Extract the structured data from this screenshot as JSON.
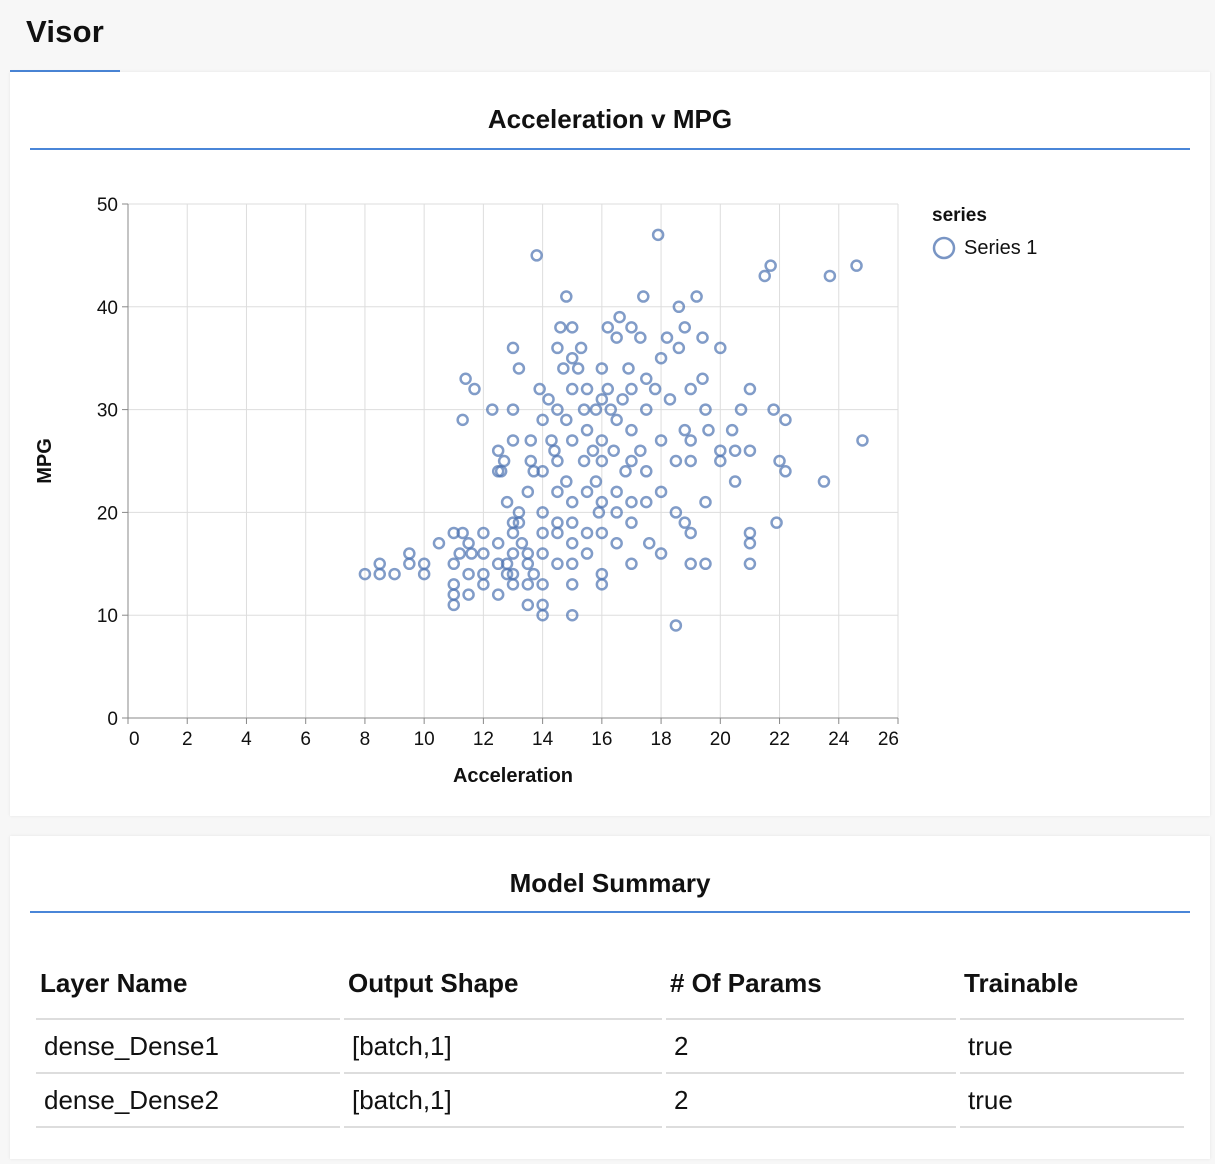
{
  "tabs": [
    {
      "label": "Visor",
      "active": true
    }
  ],
  "accent_color": "#4a86d8",
  "chart_card": {
    "title": "Acceleration v MPG"
  },
  "chart_data": {
    "type": "scatter",
    "xlabel": "Acceleration",
    "ylabel": "MPG",
    "xlim": [
      0,
      26
    ],
    "ylim": [
      0,
      50
    ],
    "x_ticks": [
      0,
      2,
      4,
      6,
      8,
      10,
      12,
      14,
      16,
      18,
      20,
      22,
      24,
      26
    ],
    "y_ticks": [
      0,
      10,
      20,
      30,
      40,
      50
    ],
    "grid": true,
    "legend": {
      "title": "series",
      "position": "top-right"
    },
    "marker_color": "#4c72b0",
    "series": [
      {
        "name": "Series 1",
        "points": [
          [
            8.0,
            14
          ],
          [
            8.5,
            15
          ],
          [
            8.5,
            14
          ],
          [
            9.0,
            14
          ],
          [
            9.5,
            16
          ],
          [
            9.5,
            15
          ],
          [
            10.0,
            15
          ],
          [
            10.0,
            14
          ],
          [
            10.5,
            17
          ],
          [
            11.0,
            18
          ],
          [
            11.0,
            15
          ],
          [
            11.0,
            13
          ],
          [
            11.0,
            12
          ],
          [
            11.0,
            11
          ],
          [
            11.2,
            16
          ],
          [
            11.3,
            18
          ],
          [
            11.3,
            29
          ],
          [
            11.4,
            33
          ],
          [
            11.5,
            17
          ],
          [
            11.5,
            14
          ],
          [
            11.5,
            12
          ],
          [
            11.6,
            16
          ],
          [
            11.7,
            32
          ],
          [
            12.0,
            18
          ],
          [
            12.0,
            16
          ],
          [
            12.0,
            14
          ],
          [
            12.0,
            13
          ],
          [
            12.3,
            30
          ],
          [
            12.5,
            26
          ],
          [
            12.5,
            24
          ],
          [
            12.5,
            17
          ],
          [
            12.5,
            15
          ],
          [
            12.5,
            12
          ],
          [
            12.6,
            24
          ],
          [
            12.7,
            25
          ],
          [
            12.8,
            21
          ],
          [
            12.8,
            15
          ],
          [
            12.8,
            14
          ],
          [
            13.0,
            36
          ],
          [
            13.0,
            30
          ],
          [
            13.0,
            27
          ],
          [
            13.0,
            19
          ],
          [
            13.0,
            18
          ],
          [
            13.0,
            16
          ],
          [
            13.0,
            14
          ],
          [
            13.0,
            13
          ],
          [
            13.2,
            34
          ],
          [
            13.2,
            20
          ],
          [
            13.2,
            19
          ],
          [
            13.3,
            17
          ],
          [
            13.5,
            22
          ],
          [
            13.5,
            16
          ],
          [
            13.5,
            15
          ],
          [
            13.5,
            13
          ],
          [
            13.5,
            11
          ],
          [
            13.6,
            27
          ],
          [
            13.6,
            25
          ],
          [
            13.7,
            24
          ],
          [
            13.7,
            14
          ],
          [
            13.8,
            45
          ],
          [
            13.9,
            32
          ],
          [
            14.0,
            29
          ],
          [
            14.0,
            24
          ],
          [
            14.0,
            20
          ],
          [
            14.0,
            18
          ],
          [
            14.0,
            16
          ],
          [
            14.0,
            13
          ],
          [
            14.0,
            11
          ],
          [
            14.0,
            10
          ],
          [
            14.2,
            31
          ],
          [
            14.3,
            27
          ],
          [
            14.4,
            26
          ],
          [
            14.5,
            36
          ],
          [
            14.5,
            30
          ],
          [
            14.5,
            25
          ],
          [
            14.5,
            22
          ],
          [
            14.5,
            19
          ],
          [
            14.5,
            18
          ],
          [
            14.5,
            15
          ],
          [
            14.6,
            38
          ],
          [
            14.7,
            34
          ],
          [
            14.8,
            41
          ],
          [
            14.8,
            29
          ],
          [
            14.8,
            23
          ],
          [
            15.0,
            38
          ],
          [
            15.0,
            35
          ],
          [
            15.0,
            32
          ],
          [
            15.0,
            27
          ],
          [
            15.0,
            21
          ],
          [
            15.0,
            19
          ],
          [
            15.0,
            17
          ],
          [
            15.0,
            15
          ],
          [
            15.0,
            13
          ],
          [
            15.0,
            10
          ],
          [
            15.2,
            34
          ],
          [
            15.3,
            36
          ],
          [
            15.4,
            30
          ],
          [
            15.4,
            25
          ],
          [
            15.5,
            32
          ],
          [
            15.5,
            28
          ],
          [
            15.5,
            22
          ],
          [
            15.5,
            18
          ],
          [
            15.5,
            16
          ],
          [
            15.7,
            26
          ],
          [
            15.8,
            30
          ],
          [
            15.8,
            23
          ],
          [
            15.9,
            20
          ],
          [
            16.0,
            34
          ],
          [
            16.0,
            31
          ],
          [
            16.0,
            27
          ],
          [
            16.0,
            25
          ],
          [
            16.0,
            21
          ],
          [
            16.0,
            18
          ],
          [
            16.0,
            14
          ],
          [
            16.0,
            13
          ],
          [
            16.2,
            38
          ],
          [
            16.2,
            32
          ],
          [
            16.3,
            30
          ],
          [
            16.4,
            26
          ],
          [
            16.5,
            37
          ],
          [
            16.5,
            29
          ],
          [
            16.5,
            22
          ],
          [
            16.5,
            20
          ],
          [
            16.5,
            17
          ],
          [
            16.6,
            39
          ],
          [
            16.7,
            31
          ],
          [
            16.8,
            24
          ],
          [
            16.9,
            34
          ],
          [
            17.0,
            38
          ],
          [
            17.0,
            32
          ],
          [
            17.0,
            28
          ],
          [
            17.0,
            25
          ],
          [
            17.0,
            21
          ],
          [
            17.0,
            19
          ],
          [
            17.0,
            15
          ],
          [
            17.3,
            37
          ],
          [
            17.3,
            26
          ],
          [
            17.4,
            41
          ],
          [
            17.5,
            33
          ],
          [
            17.5,
            30
          ],
          [
            17.5,
            24
          ],
          [
            17.5,
            21
          ],
          [
            17.6,
            17
          ],
          [
            17.8,
            32
          ],
          [
            17.9,
            47
          ],
          [
            18.0,
            35
          ],
          [
            18.0,
            27
          ],
          [
            18.0,
            22
          ],
          [
            18.0,
            16
          ],
          [
            18.2,
            37
          ],
          [
            18.3,
            31
          ],
          [
            18.5,
            25
          ],
          [
            18.5,
            20
          ],
          [
            18.5,
            9
          ],
          [
            18.6,
            40
          ],
          [
            18.6,
            36
          ],
          [
            18.8,
            38
          ],
          [
            18.8,
            28
          ],
          [
            18.8,
            19
          ],
          [
            19.0,
            32
          ],
          [
            19.0,
            27
          ],
          [
            19.0,
            25
          ],
          [
            19.0,
            18
          ],
          [
            19.0,
            15
          ],
          [
            19.2,
            41
          ],
          [
            19.4,
            33
          ],
          [
            19.4,
            37
          ],
          [
            19.5,
            30
          ],
          [
            19.5,
            21
          ],
          [
            19.5,
            15
          ],
          [
            19.6,
            28
          ],
          [
            20.0,
            36
          ],
          [
            20.0,
            26
          ],
          [
            20.0,
            25
          ],
          [
            20.4,
            28
          ],
          [
            20.5,
            26
          ],
          [
            20.5,
            23
          ],
          [
            20.7,
            30
          ],
          [
            21.0,
            32
          ],
          [
            21.0,
            26
          ],
          [
            21.0,
            18
          ],
          [
            21.0,
            17
          ],
          [
            21.0,
            15
          ],
          [
            21.5,
            43
          ],
          [
            21.7,
            44
          ],
          [
            21.8,
            30
          ],
          [
            21.9,
            19
          ],
          [
            22.0,
            25
          ],
          [
            22.2,
            24
          ],
          [
            22.2,
            29
          ],
          [
            23.5,
            23
          ],
          [
            23.7,
            43
          ],
          [
            24.6,
            44
          ],
          [
            24.8,
            27
          ]
        ]
      }
    ]
  },
  "model_summary": {
    "title": "Model Summary",
    "headers": [
      "Layer Name",
      "Output Shape",
      "# Of Params",
      "Trainable"
    ],
    "rows": [
      [
        "dense_Dense1",
        "[batch,1]",
        "2",
        "true"
      ],
      [
        "dense_Dense2",
        "[batch,1]",
        "2",
        "true"
      ]
    ]
  }
}
